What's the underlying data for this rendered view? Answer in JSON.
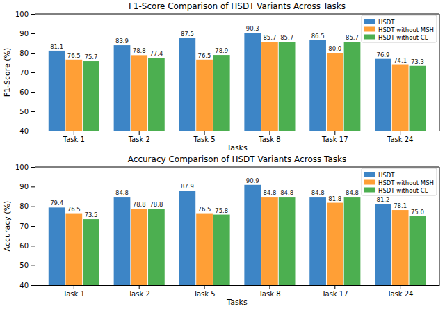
{
  "chart_data": [
    {
      "type": "bar",
      "title": "F1-Score Comparison of HSDT Variants Across Tasks",
      "x_label": "Tasks",
      "y_label": "F1-Score (%)",
      "categories": [
        "Task 1",
        "Task 2",
        "Task 5",
        "Task 8",
        "Task 17",
        "Task 24"
      ],
      "series": [
        {
          "name": "HSDT",
          "color": "#3d85c6",
          "values": [
            81.1,
            83.9,
            87.5,
            90.3,
            86.5,
            76.9
          ],
          "value_labels": [
            "81.1",
            "83.9",
            "87.5",
            "90.3",
            "86.5",
            "76.9"
          ]
        },
        {
          "name": "HSDT without MSH",
          "color": "#ff9f36",
          "values": [
            76.5,
            78.8,
            76.5,
            85.7,
            80.0,
            74.1
          ],
          "value_labels": [
            "76.5",
            "78.8",
            "76.5",
            "85.7",
            "80.0",
            "74.1"
          ]
        },
        {
          "name": "HSDT without CL",
          "color": "#4caf50",
          "values": [
            75.7,
            77.4,
            78.9,
            85.7,
            85.7,
            73.3
          ],
          "value_labels": [
            "75.7",
            "77.4",
            "78.9",
            "85.7",
            "85.7",
            "73.3"
          ]
        }
      ],
      "ylim": [
        40,
        100
      ],
      "yticks": [
        40,
        50,
        60,
        70,
        80,
        90,
        100
      ],
      "grid": false,
      "legend": "upper right",
      "data_labels": true
    },
    {
      "type": "bar",
      "title": "Accuracy Comparison of HSDT Variants Across Tasks",
      "x_label": "Tasks",
      "y_label": "Accuracy (%)",
      "categories": [
        "Task 1",
        "Task 2",
        "Task 5",
        "Task 8",
        "Task 17",
        "Task 24"
      ],
      "series": [
        {
          "name": "HSDT",
          "color": "#3d85c6",
          "values": [
            79.4,
            84.8,
            87.9,
            90.9,
            84.8,
            81.2
          ],
          "value_labels": [
            "79.4",
            "84.8",
            "87.9",
            "90.9",
            "84.8",
            "81.2"
          ]
        },
        {
          "name": "HSDT without MSH",
          "color": "#ff9f36",
          "values": [
            76.5,
            78.8,
            76.5,
            84.8,
            81.8,
            78.1
          ],
          "value_labels": [
            "76.5",
            "78.8",
            "76.5",
            "84.8",
            "81.8",
            "78.1"
          ]
        },
        {
          "name": "HSDT without CL",
          "color": "#4caf50",
          "values": [
            73.5,
            78.8,
            75.8,
            84.8,
            84.8,
            75.0
          ],
          "value_labels": [
            "73.5",
            "78.8",
            "75.8",
            "84.8",
            "84.8",
            "75.0"
          ]
        }
      ],
      "ylim": [
        40,
        100
      ],
      "yticks": [
        40,
        50,
        60,
        70,
        80,
        90,
        100
      ],
      "grid": false,
      "legend": "upper right",
      "data_labels": true
    }
  ]
}
